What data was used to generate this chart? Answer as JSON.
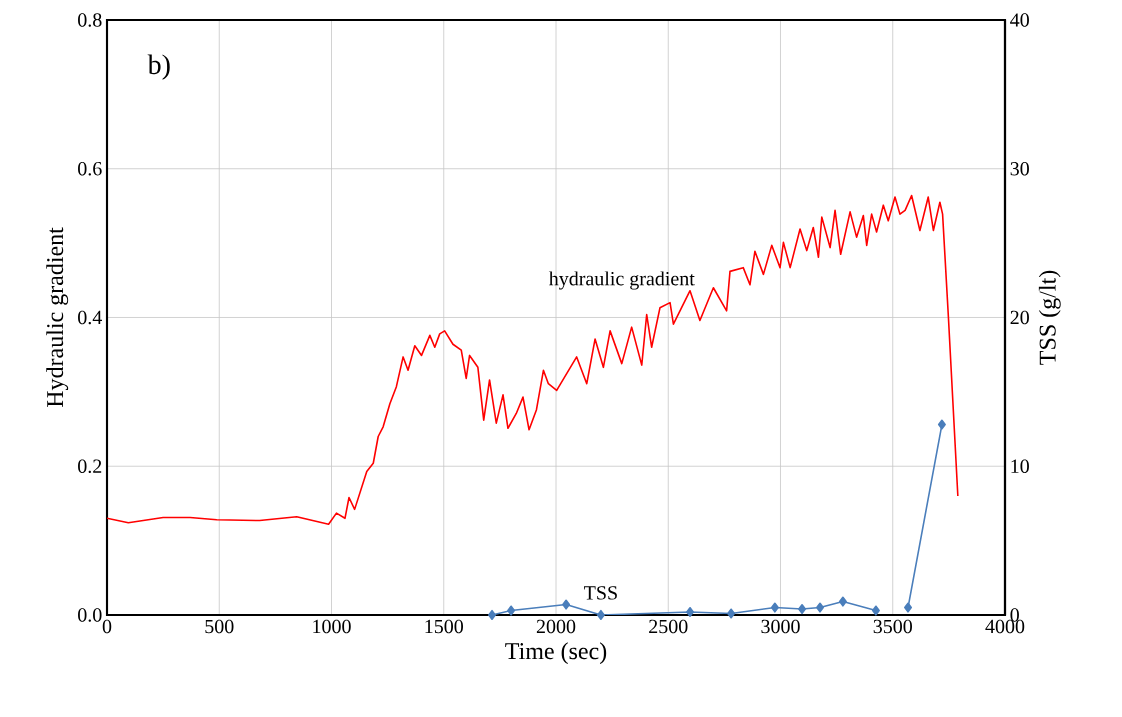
{
  "chart_data": {
    "type": "line",
    "annotations": [
      "b)"
    ],
    "xlabel": "Time (sec)",
    "ylabel": "Hydraulic gradient",
    "y2label": "TSS (g/lt)",
    "xlim": [
      0,
      4000
    ],
    "xticks": [
      0,
      500,
      1000,
      1500,
      2000,
      2500,
      3000,
      3500,
      4000
    ],
    "ylim": [
      0,
      0.8
    ],
    "yticks": [
      {
        "value": 0,
        "label": "0.0"
      },
      {
        "value": 0.2,
        "label": "0.2"
      },
      {
        "value": 0.4,
        "label": "0.4"
      },
      {
        "value": 0.6,
        "label": "0.6"
      },
      {
        "value": 0.8,
        "label": "0.8"
      }
    ],
    "y2lim": [
      0,
      40
    ],
    "y2ticks": [
      0,
      10,
      20,
      30,
      40
    ],
    "grid": true,
    "series": [
      {
        "name": "hydraulic gradient",
        "color": "#ff0000",
        "marker": "none",
        "line_style": "solid",
        "x": [
          0,
          95,
          250,
          370,
          489,
          680,
          845,
          987,
          1022,
          1060,
          1078,
          1103,
          1157,
          1186,
          1208,
          1230,
          1260,
          1289,
          1319,
          1341,
          1371,
          1401,
          1438,
          1460,
          1482,
          1504,
          1541,
          1578,
          1600,
          1615,
          1652,
          1678,
          1704,
          1734,
          1764,
          1786,
          1823,
          1853,
          1880,
          1913,
          1944,
          1966,
          2003,
          2092,
          2137,
          2174,
          2211,
          2241,
          2293,
          2337,
          2382,
          2404,
          2426,
          2463,
          2508,
          2523,
          2597,
          2641,
          2701,
          2760,
          2775,
          2834,
          2864,
          2886,
          2924,
          2961,
          2998,
          3013,
          3043,
          3087,
          3117,
          3146,
          3169,
          3184,
          3221,
          3243,
          3268,
          3310,
          3339,
          3369,
          3384,
          3406,
          3428,
          3458,
          3480,
          3510,
          3532,
          3555,
          3584,
          3621,
          3658,
          3681,
          3710,
          3722,
          3748,
          3790
        ],
        "values": [
          0.13,
          0.124,
          0.131,
          0.131,
          0.128,
          0.127,
          0.132,
          0.122,
          0.137,
          0.13,
          0.158,
          0.142,
          0.193,
          0.204,
          0.24,
          0.253,
          0.284,
          0.307,
          0.347,
          0.329,
          0.362,
          0.349,
          0.376,
          0.36,
          0.378,
          0.382,
          0.364,
          0.356,
          0.318,
          0.349,
          0.333,
          0.262,
          0.316,
          0.258,
          0.296,
          0.251,
          0.271,
          0.293,
          0.249,
          0.276,
          0.329,
          0.311,
          0.302,
          0.347,
          0.311,
          0.371,
          0.333,
          0.382,
          0.338,
          0.387,
          0.336,
          0.404,
          0.36,
          0.413,
          0.42,
          0.391,
          0.436,
          0.396,
          0.44,
          0.409,
          0.462,
          0.467,
          0.444,
          0.489,
          0.458,
          0.497,
          0.467,
          0.501,
          0.467,
          0.519,
          0.49,
          0.521,
          0.481,
          0.535,
          0.494,
          0.544,
          0.485,
          0.542,
          0.508,
          0.537,
          0.497,
          0.539,
          0.515,
          0.551,
          0.53,
          0.562,
          0.539,
          0.544,
          0.564,
          0.517,
          0.562,
          0.517,
          0.555,
          0.539,
          0.4,
          0.16
        ]
      },
      {
        "name": "TSS",
        "color": "#4a7ebb",
        "marker": "diamond",
        "line_style": "solid",
        "axis": "y2",
        "x": [
          1715,
          1800,
          2045,
          2200,
          2597,
          2780,
          2975,
          3096,
          3176,
          3278,
          3425,
          3490,
          3568,
          3719
        ],
        "values": [
          0,
          0.3,
          0.7,
          0,
          0.2,
          0.1,
          0.5,
          0.4,
          0.5,
          0.9,
          0.3,
          null,
          0.5,
          12.8
        ]
      }
    ]
  }
}
